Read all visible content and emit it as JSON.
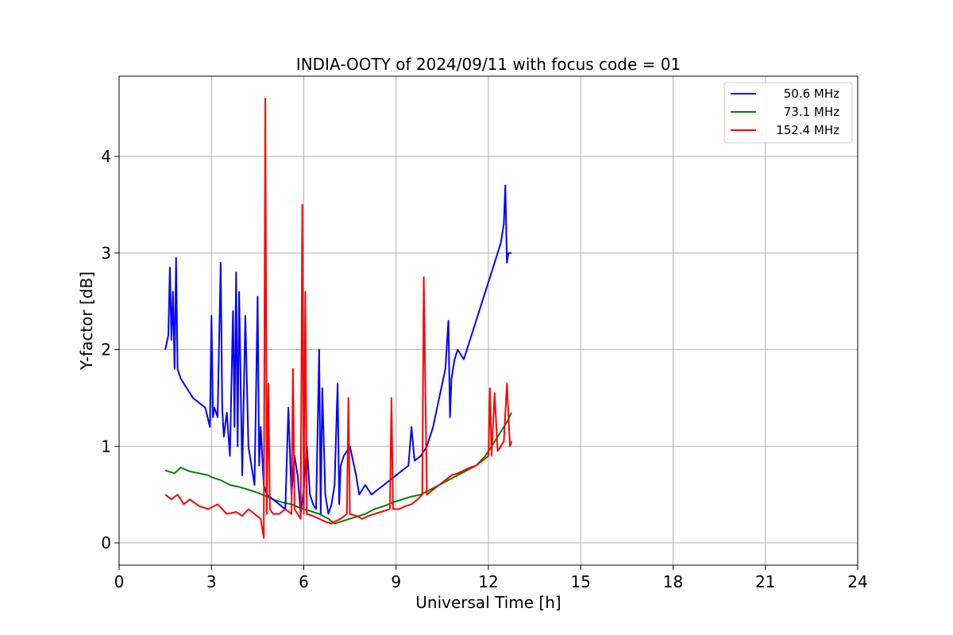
{
  "chart_data": {
    "type": "line",
    "title": "INDIA-OOTY of 2024/09/11 with focus code = 01",
    "xlabel": "Universal Time [h]",
    "ylabel": "Y-factor [dB]",
    "xlim": [
      0,
      24
    ],
    "ylim": [
      -0.23,
      4.83
    ],
    "xticks": [
      0,
      3,
      6,
      9,
      12,
      15,
      18,
      21,
      24
    ],
    "yticks": [
      0,
      1,
      2,
      3,
      4
    ],
    "grid": true,
    "legend_position": "top-right",
    "series": [
      {
        "name": "50.6 MHz",
        "color": "#0000ff",
        "x": [
          1.5,
          1.6,
          1.65,
          1.7,
          1.75,
          1.8,
          1.85,
          1.9,
          2.0,
          2.2,
          2.4,
          2.6,
          2.8,
          2.95,
          3.0,
          3.05,
          3.1,
          3.2,
          3.3,
          3.35,
          3.4,
          3.5,
          3.6,
          3.7,
          3.75,
          3.8,
          3.85,
          3.9,
          4.0,
          4.1,
          4.2,
          4.3,
          4.4,
          4.5,
          4.55,
          4.6,
          4.7,
          4.8,
          5.0,
          5.2,
          5.4,
          5.5,
          5.6,
          5.7,
          5.8,
          5.9,
          6.0,
          6.1,
          6.2,
          6.3,
          6.4,
          6.5,
          6.55,
          6.6,
          6.7,
          6.8,
          6.9,
          7.0,
          7.1,
          7.15,
          7.2,
          7.3,
          7.5,
          7.7,
          7.8,
          7.9,
          8.0,
          8.2,
          8.4,
          8.6,
          8.8,
          9.0,
          9.2,
          9.4,
          9.5,
          9.6,
          9.8,
          10.0,
          10.2,
          10.4,
          10.6,
          10.7,
          10.75,
          10.8,
          10.9,
          11.0,
          11.2,
          11.4,
          11.6,
          11.8,
          12.0,
          12.2,
          12.4,
          12.5,
          12.55,
          12.6,
          12.65,
          12.75
        ],
        "y": [
          2.0,
          2.15,
          2.85,
          2.1,
          2.6,
          1.8,
          2.95,
          1.8,
          1.7,
          1.6,
          1.5,
          1.45,
          1.4,
          1.2,
          2.35,
          1.3,
          1.4,
          1.3,
          2.9,
          1.4,
          1.1,
          1.35,
          0.9,
          2.4,
          1.2,
          2.8,
          1.0,
          2.6,
          0.7,
          2.35,
          1.0,
          0.8,
          0.6,
          2.55,
          0.8,
          1.2,
          0.6,
          0.5,
          0.45,
          0.4,
          0.35,
          1.4,
          0.5,
          0.9,
          0.7,
          0.3,
          0.55,
          1.0,
          0.5,
          0.4,
          0.35,
          2.0,
          0.3,
          1.6,
          0.5,
          0.3,
          0.4,
          0.6,
          1.65,
          0.4,
          0.8,
          0.9,
          1.0,
          0.7,
          0.5,
          0.55,
          0.6,
          0.5,
          0.55,
          0.6,
          0.65,
          0.7,
          0.75,
          0.8,
          1.2,
          0.85,
          0.9,
          1.0,
          1.2,
          1.5,
          1.8,
          2.3,
          1.3,
          1.7,
          1.9,
          2.0,
          1.9,
          2.1,
          2.3,
          2.5,
          2.7,
          2.9,
          3.1,
          3.3,
          3.7,
          2.9,
          3.0,
          3.0
        ]
      },
      {
        "name": "73.1 MHz",
        "color": "#008000",
        "x": [
          1.5,
          1.8,
          2.0,
          2.3,
          2.6,
          2.9,
          3.0,
          3.3,
          3.6,
          3.9,
          4.2,
          4.5,
          4.8,
          5.0,
          5.3,
          5.6,
          5.9,
          6.2,
          6.5,
          6.8,
          7.0,
          7.2,
          7.5,
          7.8,
          8.0,
          8.3,
          8.6,
          8.9,
          9.2,
          9.5,
          9.8,
          10.1,
          10.4,
          10.7,
          11.0,
          11.3,
          11.6,
          11.9,
          12.0,
          12.2,
          12.4,
          12.6,
          12.75
        ],
        "y": [
          0.75,
          0.72,
          0.78,
          0.74,
          0.72,
          0.7,
          0.68,
          0.65,
          0.6,
          0.58,
          0.55,
          0.52,
          0.48,
          0.45,
          0.42,
          0.4,
          0.36,
          0.33,
          0.3,
          0.25,
          0.2,
          0.22,
          0.25,
          0.28,
          0.3,
          0.35,
          0.38,
          0.42,
          0.45,
          0.48,
          0.5,
          0.55,
          0.6,
          0.65,
          0.7,
          0.75,
          0.8,
          0.9,
          0.95,
          1.05,
          1.15,
          1.25,
          1.35
        ]
      },
      {
        "name": "152.4 MHz",
        "color": "#ff0000",
        "x": [
          1.5,
          1.7,
          1.9,
          2.1,
          2.3,
          2.6,
          2.9,
          3.2,
          3.5,
          3.8,
          4.0,
          4.2,
          4.4,
          4.6,
          4.7,
          4.75,
          4.8,
          4.85,
          4.9,
          5.0,
          5.2,
          5.4,
          5.6,
          5.65,
          5.7,
          5.8,
          5.9,
          5.95,
          6.0,
          6.05,
          6.1,
          6.3,
          6.5,
          6.7,
          6.9,
          7.0,
          7.2,
          7.4,
          7.45,
          7.5,
          7.7,
          7.9,
          8.1,
          8.3,
          8.5,
          8.8,
          8.85,
          8.9,
          9.1,
          9.3,
          9.5,
          9.7,
          9.85,
          9.9,
          10.0,
          10.2,
          10.4,
          10.6,
          10.8,
          11.0,
          11.2,
          11.4,
          11.6,
          11.8,
          12.0,
          12.05,
          12.1,
          12.2,
          12.3,
          12.4,
          12.5,
          12.6,
          12.7,
          12.75
        ],
        "y": [
          0.5,
          0.45,
          0.5,
          0.4,
          0.45,
          0.38,
          0.35,
          0.4,
          0.3,
          0.32,
          0.28,
          0.35,
          0.3,
          0.25,
          0.05,
          4.6,
          0.3,
          1.65,
          0.35,
          0.3,
          0.3,
          0.35,
          0.3,
          1.8,
          0.35,
          0.3,
          0.25,
          3.5,
          0.3,
          2.6,
          0.3,
          0.28,
          0.25,
          0.22,
          0.2,
          0.22,
          0.25,
          0.3,
          1.5,
          0.3,
          0.28,
          0.25,
          0.28,
          0.3,
          0.32,
          0.35,
          1.5,
          0.35,
          0.35,
          0.38,
          0.4,
          0.45,
          0.5,
          2.75,
          0.5,
          0.55,
          0.6,
          0.65,
          0.7,
          0.72,
          0.75,
          0.78,
          0.8,
          0.85,
          0.9,
          1.6,
          0.9,
          1.55,
          0.95,
          1.0,
          1.05,
          1.65,
          1.0,
          1.05
        ]
      }
    ]
  }
}
